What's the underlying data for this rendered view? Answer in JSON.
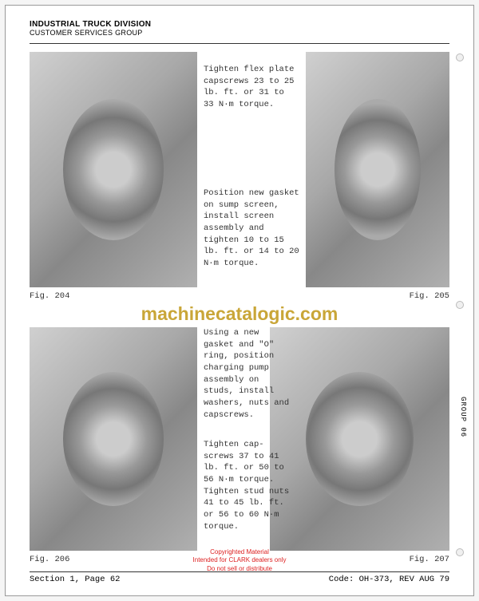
{
  "header": {
    "line1": "INDUSTRIAL TRUCK DIVISION",
    "line2": "CUSTOMER SERVICES GROUP"
  },
  "instructions": {
    "step1": "Tighten flex plate capscrews 23 to 25 lb. ft. or 31 to 33 N·m torque.",
    "step2": "Position new gasket on sump screen, install screen assembly and tighten 10 to 15 lb. ft. or 14 to 20 N·m torque.",
    "step3": "Using a new gasket and \"O\" ring, position charging pump assembly on studs, install washers, nuts and capscrews.",
    "step4": "Tighten cap-screws 37 to 41 lb. ft. or 50 to 56 N·m torque.  Tighten stud nuts 41 to 45 lb. ft. or 56 to 60 N·m torque."
  },
  "figures": {
    "fig204": "Fig. 204",
    "fig205": "Fig. 205",
    "fig206": "Fig. 206",
    "fig207": "Fig. 207"
  },
  "watermark": "machinecatalogic.com",
  "side_tab": "GROUP 06",
  "copyright": {
    "line1": "Copyrighted Material",
    "line2": "Intended for CLARK dealers only",
    "line3": "Do not sell or distribute"
  },
  "footer": {
    "left": "Section 1, Page 62",
    "right": "Code: OH-373, REV AUG 79"
  },
  "colors": {
    "watermark": "#c9a638",
    "copyright": "#d22",
    "text": "#333",
    "border": "#999"
  }
}
